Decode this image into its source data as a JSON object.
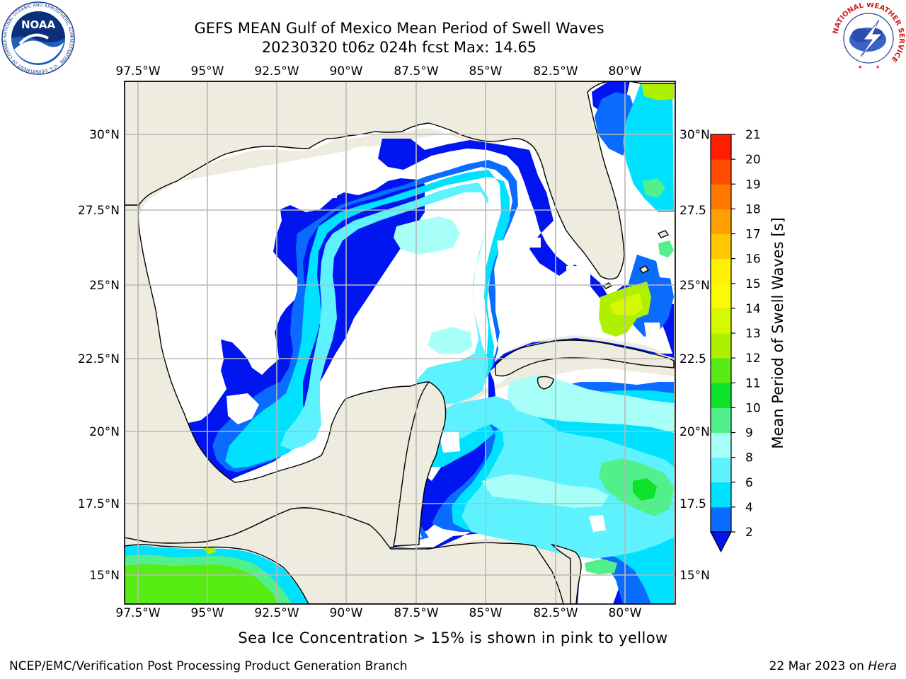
{
  "title": {
    "line1": "GEFS MEAN Gulf of Mexico Mean Period of Swell Waves",
    "line2": "20230320 t06z 024h fcst   Max: 14.65"
  },
  "axes": {
    "lon_labels": [
      "97.5°W",
      "95°W",
      "92.5°W",
      "90°W",
      "87.5°W",
      "85°W",
      "82.5°W",
      "80°W"
    ],
    "lat_labels_left": [
      "30°N",
      "27.5°N",
      "25°N",
      "22.5°N",
      "20°N",
      "17.5°N",
      "15°N"
    ],
    "lat_labels_right": [
      "30°N",
      "27.5",
      "25°N",
      "22.5",
      "20°N",
      "17.5",
      "15°N"
    ]
  },
  "colorbar": {
    "label": "Mean Period of Swell Waves [s]",
    "ticks": [
      "2",
      "4",
      "6",
      "8",
      "9",
      "10",
      "11",
      "12",
      "13",
      "14",
      "15",
      "16",
      "17",
      "18",
      "19",
      "20",
      "21"
    ],
    "colors": [
      "#0a6cff",
      "#00e0ff",
      "#5ef2ff",
      "#a8fff8",
      "#52f08a",
      "#0ee22a",
      "#56ec14",
      "#aef000",
      "#d6f800",
      "#fafa00",
      "#fff000",
      "#ffc800",
      "#ffa000",
      "#ff7800",
      "#ff4a00",
      "#ff1e00"
    ],
    "extend_color": "#0015ef"
  },
  "colors": {
    "land": "#eeecdf",
    "grid": "#b8b8b8",
    "swell_darkblue": "#0015ef",
    "swell_blue": "#0a6cff",
    "swell_cyan": "#00e0ff",
    "swell_lightcyan": "#5ef2ff",
    "swell_palecyan": "#a8fff8",
    "swell_green": "#52f08a",
    "swell_brightgreen": "#0ee22a",
    "swell_yellowgreen": "#aef000",
    "swell_lime": "#d6f800"
  },
  "caption": "Sea Ice Concentration > 15% is shown in pink to yellow",
  "footer": {
    "left": "NCEP/EMC/Verification Post Processing Product Generation Branch",
    "date": "22 Mar 2023 on",
    "machine": "Hera"
  },
  "logos": {
    "noaa_text": "NOAA",
    "noaa_ring": "NATIONAL OCEANIC AND ATMOSPHERIC ADMINISTRATION · U.S. DEPARTMENT OF COMMERCE ·",
    "nws_ring": "NATIONAL WEATHER SERVICE"
  }
}
